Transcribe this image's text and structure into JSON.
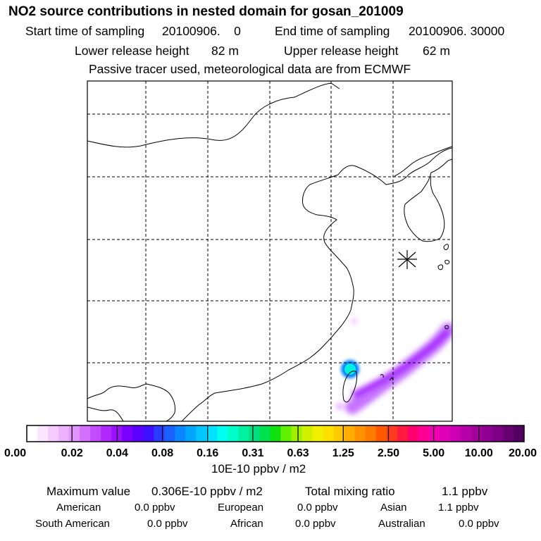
{
  "header": {
    "title": "NO2 source contributions in nested domain for gosan_201009",
    "start_label": "Start time of sampling",
    "start_value": "20100906.    0",
    "end_label": "End time of sampling",
    "end_value": "20100906. 30000",
    "lower_label": "Lower release height",
    "lower_value": "82 m",
    "upper_label": "Upper release height",
    "upper_value": "62 m",
    "note": "Passive tracer used, meteorological data are from ECMWF"
  },
  "chart_data": {
    "type": "heatmap",
    "title": "NO2 source contributions in nested domain for gosan_201009",
    "grid": true,
    "station_marker": "gosan",
    "colorbar": {
      "ticks": [
        "0.00",
        "0.02",
        "0.04",
        "0.08",
        "0.16",
        "0.31",
        "0.63",
        "1.25",
        "2.50",
        "5.00",
        "10.00",
        "20.00"
      ],
      "unit_label": "10E-10 ppbv / m2",
      "colors": [
        "#ffffff",
        "#fbe6ff",
        "#f4ccff",
        "#edb2ff",
        "#e294ff",
        "#d470ff",
        "#c24cff",
        "#b02aff",
        "#9a10ff",
        "#7a00ff",
        "#5a00ff",
        "#3c10ff",
        "#2a3cff",
        "#1a62ff",
        "#0a86ff",
        "#00a6ff",
        "#00c6ff",
        "#00e2ff",
        "#00ffee",
        "#00ffc8",
        "#00f0a0",
        "#00e080",
        "#00e050",
        "#10e010",
        "#60f000",
        "#a0f000",
        "#d0f000",
        "#f0f000",
        "#ffe000",
        "#ffc800",
        "#ffae00",
        "#ff9400",
        "#ff7a00",
        "#ff5a00",
        "#ff3a20",
        "#ff1a40",
        "#ff0070",
        "#ff0094",
        "#f000b0",
        "#e000b8",
        "#cc00b4",
        "#b800aa",
        "#a4009e",
        "#900092",
        "#7c0084",
        "#660070",
        "#520060"
      ]
    }
  },
  "stats": {
    "max_label": "Maximum value",
    "max_value": "0.306E-10 ppbv / m2",
    "total_label": "Total mixing ratio",
    "total_value": "1.1 ppbv",
    "american_label": "American",
    "american_value": "0.0 ppbv",
    "european_label": "European",
    "european_value": "0.0 ppbv",
    "asian_label": "Asian",
    "asian_value": "1.1 ppbv",
    "southamerican_label": "South American",
    "southamerican_value": "0.0 ppbv",
    "african_label": "African",
    "african_value": "0.0 ppbv",
    "australian_label": "Australian",
    "australian_value": "0.0 ppbv"
  }
}
